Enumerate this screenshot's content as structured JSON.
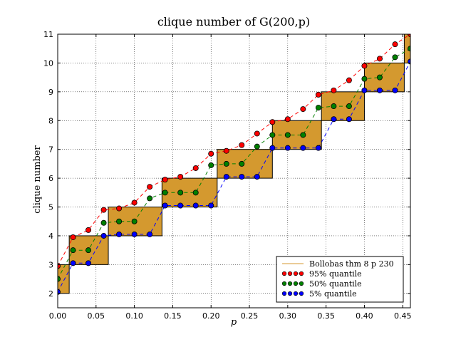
{
  "chart_data": {
    "type": "scatter",
    "title": "clique number of G(200,p)",
    "xlabel": "p",
    "ylabel": "clique number",
    "xlim": [
      0.0,
      0.46
    ],
    "ylim": [
      1.5,
      11.0
    ],
    "xticks": [
      "0.00",
      "0.05",
      "0.10",
      "0.15",
      "0.20",
      "0.25",
      "0.30",
      "0.35",
      "0.40",
      "0.45"
    ],
    "yticks": [
      "2",
      "3",
      "4",
      "5",
      "6",
      "7",
      "8",
      "9",
      "10",
      "11"
    ],
    "grid": true,
    "grid_style": "dotted",
    "legend_position": "lower-right",
    "colors": {
      "bollobas": "#d4992f",
      "q95": "#ff0000",
      "q50": "#008000",
      "q05": "#0000ff",
      "axis": "#000000"
    },
    "x": [
      0.0,
      0.02,
      0.04,
      0.06,
      0.08,
      0.1,
      0.12,
      0.14,
      0.16,
      0.18,
      0.2,
      0.22,
      0.24,
      0.26,
      0.28,
      0.3,
      0.32,
      0.34,
      0.36,
      0.38,
      0.4,
      0.42,
      0.44,
      0.46
    ],
    "series": [
      {
        "name": "Bollobas thm 8 p 230",
        "kind": "step-band",
        "bands": [
          {
            "x0": 0.0,
            "x1": 0.015,
            "y0": 2,
            "y1": 3
          },
          {
            "x0": 0.015,
            "x1": 0.066,
            "y0": 3,
            "y1": 4
          },
          {
            "x0": 0.066,
            "x1": 0.136,
            "y0": 4,
            "y1": 5
          },
          {
            "x0": 0.136,
            "x1": 0.208,
            "y0": 5,
            "y1": 6
          },
          {
            "x0": 0.208,
            "x1": 0.28,
            "y0": 6,
            "y1": 7
          },
          {
            "x0": 0.28,
            "x1": 0.344,
            "y0": 7,
            "y1": 8
          },
          {
            "x0": 0.344,
            "x1": 0.4,
            "y0": 8,
            "y1": 9
          },
          {
            "x0": 0.4,
            "x1": 0.452,
            "y0": 9,
            "y1": 10
          },
          {
            "x0": 0.452,
            "x1": 0.46,
            "y0": 10,
            "y1": 11
          }
        ]
      },
      {
        "name": "95% quantile",
        "color_key": "q95",
        "values": [
          2.95,
          3.95,
          4.2,
          4.9,
          4.95,
          5.15,
          5.7,
          5.95,
          6.05,
          6.35,
          6.85,
          6.95,
          7.15,
          7.55,
          7.95,
          8.05,
          8.4,
          8.9,
          9.05,
          9.4,
          9.9,
          10.15,
          10.65,
          11.0
        ]
      },
      {
        "name": "50% quantile",
        "color_key": "q50",
        "values": [
          2.5,
          3.5,
          3.5,
          4.45,
          4.5,
          4.5,
          5.3,
          5.5,
          5.5,
          5.5,
          6.45,
          6.5,
          6.5,
          7.1,
          7.5,
          7.5,
          7.5,
          8.45,
          8.5,
          8.5,
          9.45,
          9.5,
          10.2,
          10.5
        ]
      },
      {
        "name": "5% quantile",
        "color_key": "q05",
        "values": [
          2.05,
          3.05,
          3.05,
          4.0,
          4.05,
          4.05,
          4.05,
          5.05,
          5.05,
          5.05,
          5.05,
          6.05,
          6.05,
          6.05,
          7.05,
          7.05,
          7.05,
          7.05,
          8.05,
          8.05,
          9.05,
          9.05,
          9.05,
          10.05
        ]
      }
    ],
    "legend": [
      {
        "label": "Bollobas thm 8 p 230",
        "kind": "line",
        "color_key": "bollobas"
      },
      {
        "label": "95% quantile",
        "kind": "markers",
        "color_key": "q95"
      },
      {
        "label": "50% quantile",
        "kind": "markers",
        "color_key": "q50"
      },
      {
        "label": " 5% quantile",
        "kind": "markers",
        "color_key": "q05"
      }
    ]
  }
}
